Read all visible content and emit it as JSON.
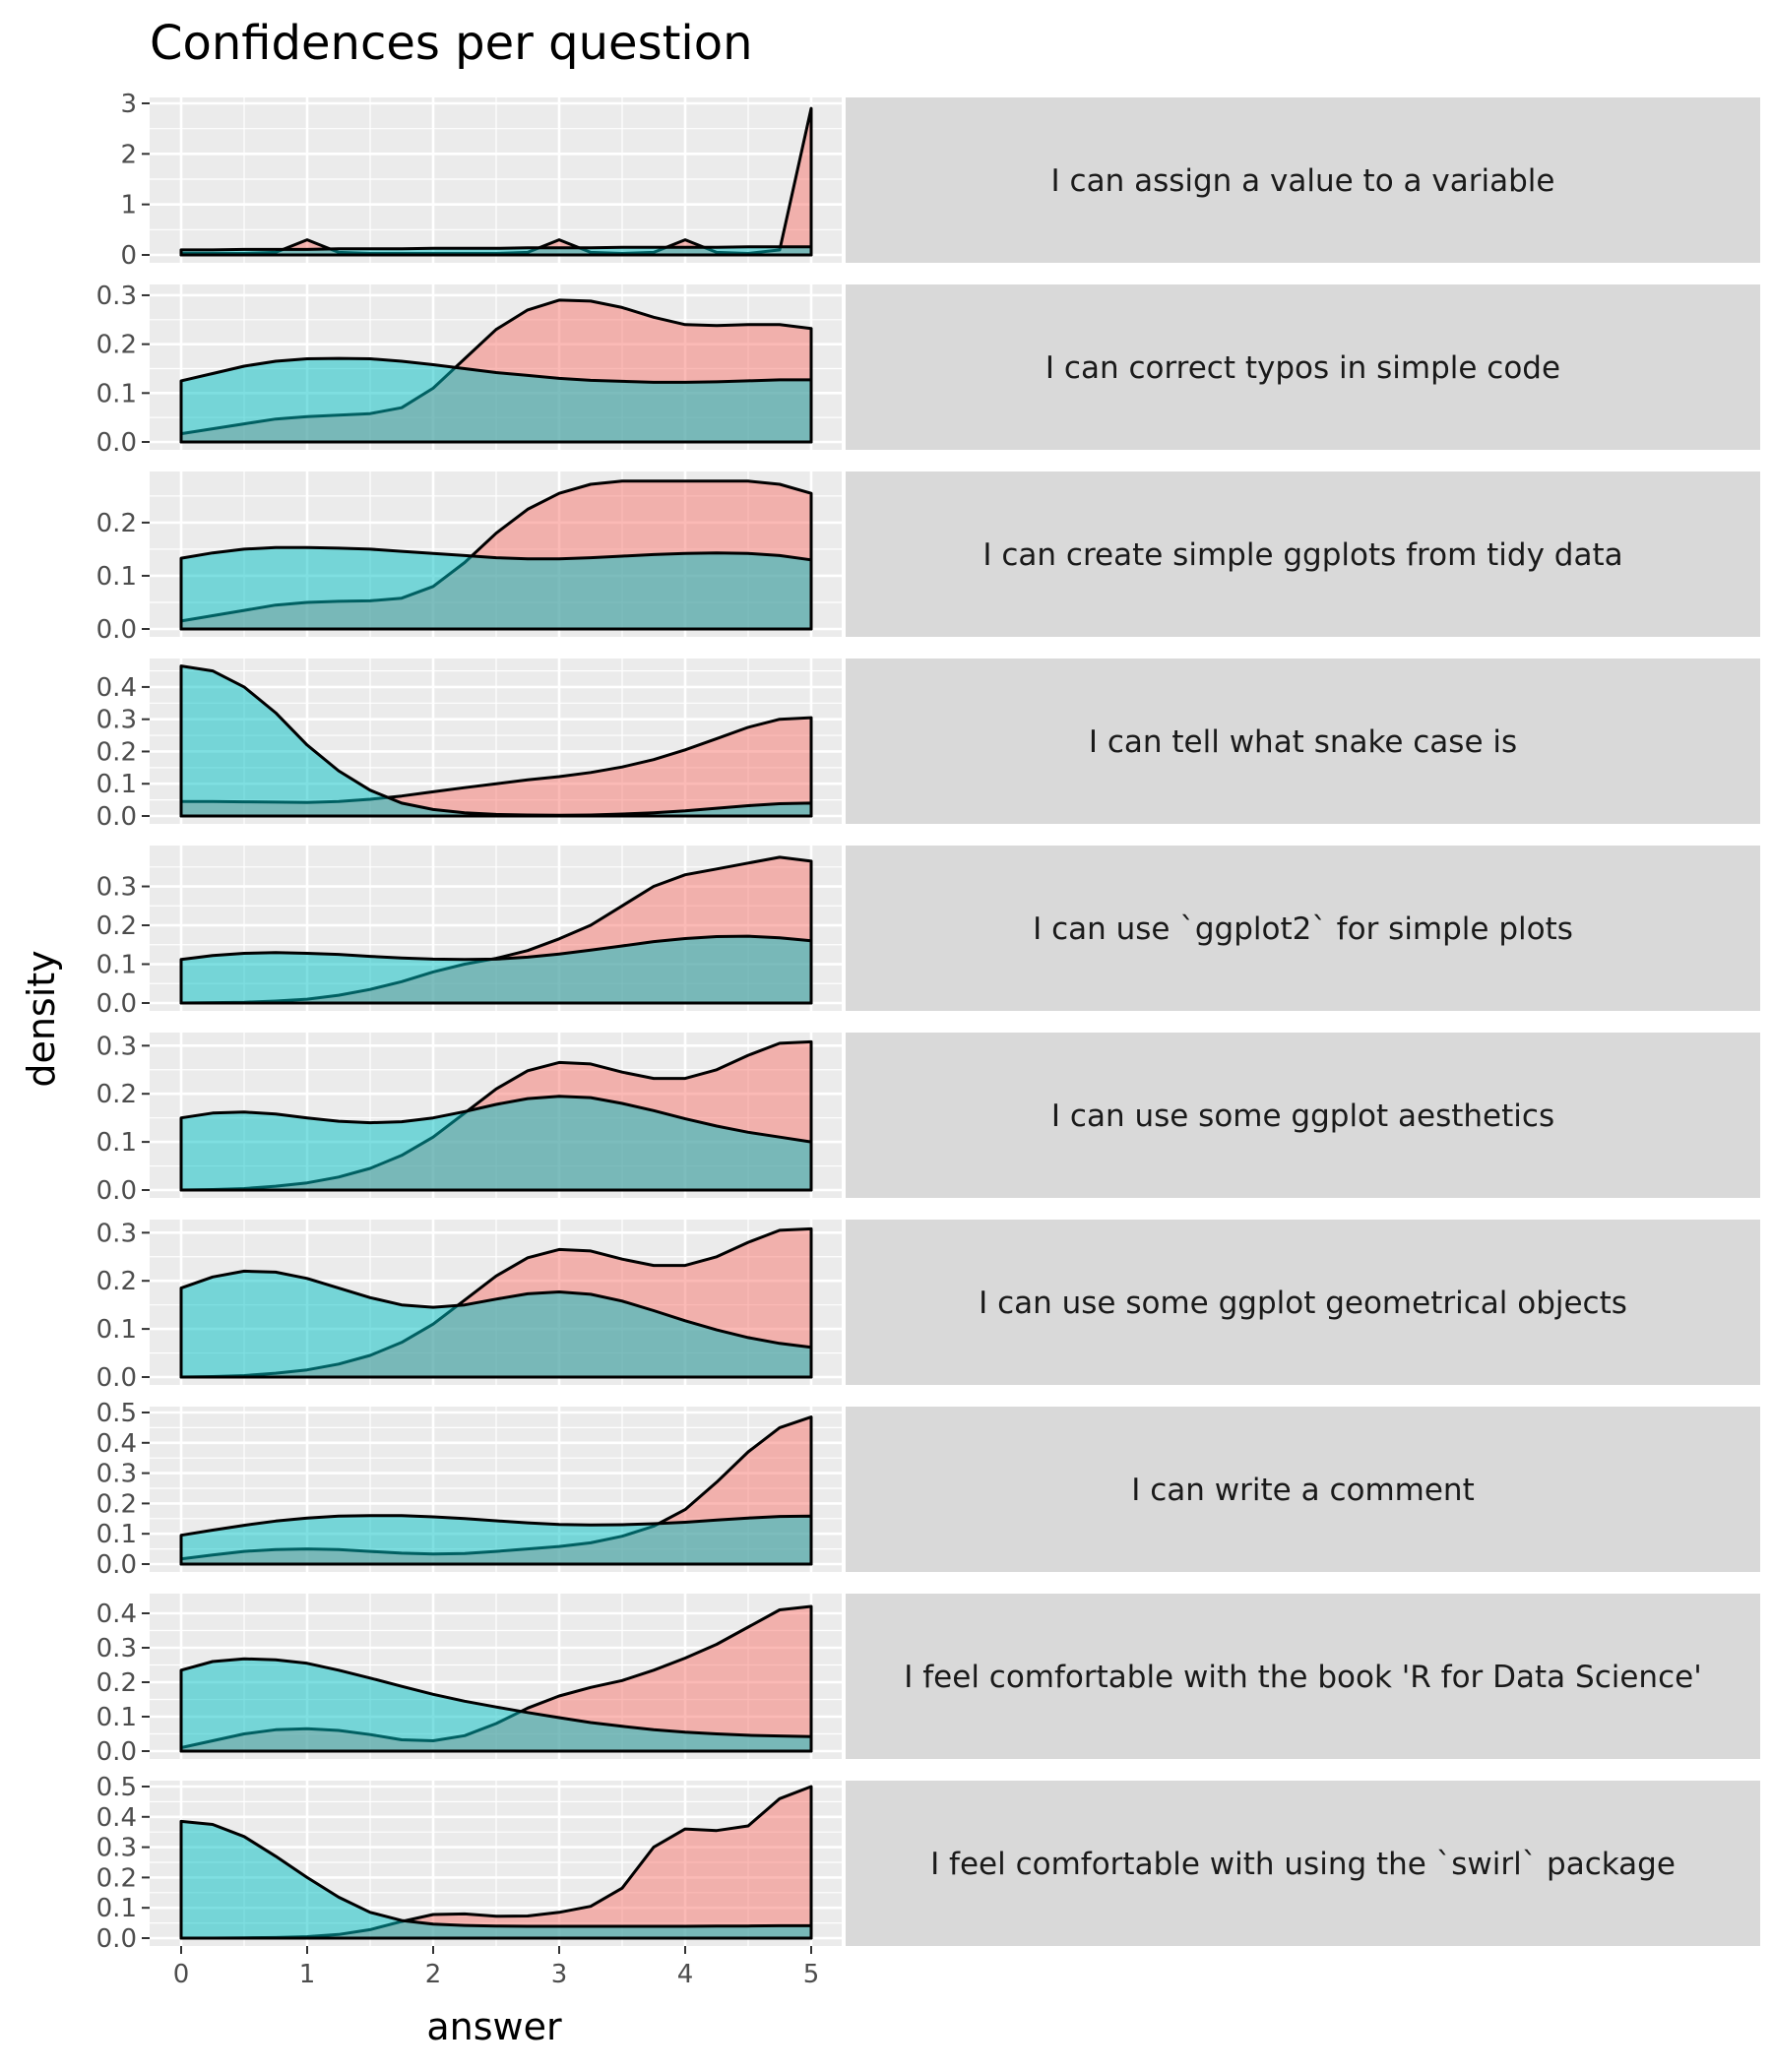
{
  "chart_data": {
    "type": "area",
    "title": "Confidences per question",
    "xlabel": "answer",
    "ylabel": "density",
    "xlim": [
      0,
      5
    ],
    "x_ticks": [
      0,
      1,
      2,
      3,
      4,
      5
    ],
    "grid": true,
    "legend": "none",
    "colors": {
      "red": "#F8766D",
      "teal": "#00BFC4"
    },
    "x": [
      0,
      0.25,
      0.5,
      0.75,
      1,
      1.25,
      1.5,
      1.75,
      2,
      2.25,
      2.5,
      2.75,
      3,
      3.25,
      3.5,
      3.75,
      4,
      4.25,
      4.5,
      4.75,
      5
    ],
    "panels": [
      {
        "label": "I can assign a value to a variable",
        "ylim": [
          0,
          3
        ],
        "y_ticks": [
          0,
          1,
          2,
          3
        ],
        "y_tick_labels": [
          "0",
          "1",
          "2",
          "3"
        ],
        "series": [
          {
            "color": "#F8766D",
            "values": [
              0.03,
              0.03,
              0.03,
              0.05,
              0.3,
              0.05,
              0.03,
              0.03,
              0.03,
              0.03,
              0.03,
              0.05,
              0.3,
              0.05,
              0.03,
              0.05,
              0.3,
              0.05,
              0.03,
              0.1,
              2.9
            ]
          },
          {
            "color": "#00BFC4",
            "values": [
              0.1,
              0.1,
              0.11,
              0.11,
              0.11,
              0.12,
              0.12,
              0.12,
              0.13,
              0.13,
              0.13,
              0.14,
              0.14,
              0.14,
              0.15,
              0.15,
              0.15,
              0.15,
              0.16,
              0.16,
              0.16
            ]
          }
        ]
      },
      {
        "label": "I can correct typos in simple code",
        "ylim": [
          0,
          0.31
        ],
        "y_ticks": [
          0,
          0.1,
          0.2,
          0.3
        ],
        "y_tick_labels": [
          "0.0",
          "0.1",
          "0.2",
          "0.3"
        ],
        "series": [
          {
            "color": "#F8766D",
            "values": [
              0.017,
              0.027,
              0.037,
              0.047,
              0.052,
              0.055,
              0.058,
              0.07,
              0.11,
              0.17,
              0.23,
              0.27,
              0.29,
              0.288,
              0.275,
              0.255,
              0.24,
              0.238,
              0.24,
              0.24,
              0.232
            ]
          },
          {
            "color": "#00BFC4",
            "values": [
              0.125,
              0.14,
              0.155,
              0.165,
              0.17,
              0.171,
              0.17,
              0.165,
              0.158,
              0.15,
              0.142,
              0.136,
              0.13,
              0.126,
              0.124,
              0.122,
              0.122,
              0.123,
              0.125,
              0.127,
              0.127
            ]
          }
        ]
      },
      {
        "label": "I can create simple ggplots from tidy data",
        "ylim": [
          0,
          0.285
        ],
        "y_ticks": [
          0,
          0.1,
          0.2
        ],
        "y_tick_labels": [
          "0.0",
          "0.1",
          "0.2"
        ],
        "series": [
          {
            "color": "#F8766D",
            "values": [
              0.015,
              0.025,
              0.035,
              0.045,
              0.05,
              0.052,
              0.053,
              0.058,
              0.08,
              0.125,
              0.18,
              0.225,
              0.255,
              0.272,
              0.278,
              0.278,
              0.278,
              0.278,
              0.278,
              0.272,
              0.255
            ]
          },
          {
            "color": "#00BFC4",
            "values": [
              0.133,
              0.143,
              0.15,
              0.153,
              0.153,
              0.152,
              0.15,
              0.146,
              0.142,
              0.138,
              0.134,
              0.132,
              0.132,
              0.134,
              0.137,
              0.14,
              0.142,
              0.143,
              0.142,
              0.138,
              0.13
            ]
          }
        ]
      },
      {
        "label": "I can tell what snake case is",
        "ylim": [
          0,
          0.47
        ],
        "y_ticks": [
          0,
          0.1,
          0.2,
          0.3,
          0.4
        ],
        "y_tick_labels": [
          "0.0",
          "0.1",
          "0.2",
          "0.3",
          "0.4"
        ],
        "series": [
          {
            "color": "#F8766D",
            "values": [
              0.045,
              0.045,
              0.044,
              0.043,
              0.042,
              0.045,
              0.052,
              0.062,
              0.075,
              0.088,
              0.1,
              0.112,
              0.122,
              0.135,
              0.152,
              0.175,
              0.205,
              0.24,
              0.275,
              0.3,
              0.305
            ]
          },
          {
            "color": "#00BFC4",
            "values": [
              0.465,
              0.45,
              0.4,
              0.32,
              0.22,
              0.14,
              0.08,
              0.04,
              0.02,
              0.01,
              0.005,
              0.003,
              0.002,
              0.003,
              0.006,
              0.01,
              0.016,
              0.024,
              0.032,
              0.038,
              0.04
            ]
          }
        ]
      },
      {
        "label": "I can use `ggplot2` for simple plots",
        "ylim": [
          0,
          0.39
        ],
        "y_ticks": [
          0,
          0.1,
          0.2,
          0.3
        ],
        "y_tick_labels": [
          "0.0",
          "0.1",
          "0.2",
          "0.3"
        ],
        "series": [
          {
            "color": "#F8766D",
            "values": [
              0.0,
              0.001,
              0.002,
              0.005,
              0.01,
              0.02,
              0.035,
              0.055,
              0.08,
              0.1,
              0.115,
              0.135,
              0.165,
              0.2,
              0.25,
              0.3,
              0.33,
              0.345,
              0.36,
              0.375,
              0.365
            ]
          },
          {
            "color": "#00BFC4",
            "values": [
              0.112,
              0.122,
              0.128,
              0.13,
              0.128,
              0.125,
              0.12,
              0.116,
              0.113,
              0.112,
              0.113,
              0.118,
              0.126,
              0.136,
              0.147,
              0.158,
              0.166,
              0.171,
              0.172,
              0.168,
              0.16
            ]
          }
        ]
      },
      {
        "label": "I can use some ggplot aesthetics",
        "ylim": [
          0,
          0.315
        ],
        "y_ticks": [
          0,
          0.1,
          0.2,
          0.3
        ],
        "y_tick_labels": [
          "0.0",
          "0.1",
          "0.2",
          "0.3"
        ],
        "series": [
          {
            "color": "#F8766D",
            "values": [
              0.0,
              0.001,
              0.003,
              0.008,
              0.015,
              0.027,
              0.045,
              0.072,
              0.11,
              0.16,
              0.21,
              0.248,
              0.265,
              0.262,
              0.245,
              0.232,
              0.232,
              0.25,
              0.28,
              0.305,
              0.308
            ]
          },
          {
            "color": "#00BFC4",
            "values": [
              0.15,
              0.16,
              0.162,
              0.158,
              0.15,
              0.143,
              0.14,
              0.142,
              0.15,
              0.163,
              0.178,
              0.19,
              0.195,
              0.192,
              0.18,
              0.165,
              0.148,
              0.133,
              0.12,
              0.11,
              0.1
            ]
          }
        ]
      },
      {
        "label": "I can use some ggplot geometrical objects",
        "ylim": [
          0,
          0.315
        ],
        "y_ticks": [
          0,
          0.1,
          0.2,
          0.3
        ],
        "y_tick_labels": [
          "0.0",
          "0.1",
          "0.2",
          "0.3"
        ],
        "series": [
          {
            "color": "#F8766D",
            "values": [
              0.0,
              0.001,
              0.003,
              0.008,
              0.015,
              0.027,
              0.045,
              0.072,
              0.11,
              0.16,
              0.21,
              0.248,
              0.265,
              0.262,
              0.245,
              0.232,
              0.232,
              0.25,
              0.28,
              0.305,
              0.308
            ]
          },
          {
            "color": "#00BFC4",
            "values": [
              0.185,
              0.208,
              0.22,
              0.218,
              0.205,
              0.185,
              0.165,
              0.15,
              0.145,
              0.15,
              0.162,
              0.173,
              0.177,
              0.172,
              0.158,
              0.138,
              0.117,
              0.098,
              0.082,
              0.07,
              0.062
            ]
          }
        ]
      },
      {
        "label": "I can write a comment",
        "ylim": [
          0,
          0.5
        ],
        "y_ticks": [
          0,
          0.1,
          0.2,
          0.3,
          0.4,
          0.5
        ],
        "y_tick_labels": [
          "0.0",
          "0.1",
          "0.2",
          "0.3",
          "0.4",
          "0.5"
        ],
        "series": [
          {
            "color": "#F8766D",
            "values": [
              0.017,
              0.03,
              0.042,
              0.048,
              0.05,
              0.048,
              0.042,
              0.036,
              0.033,
              0.035,
              0.042,
              0.05,
              0.058,
              0.07,
              0.092,
              0.125,
              0.18,
              0.27,
              0.37,
              0.45,
              0.485
            ]
          },
          {
            "color": "#00BFC4",
            "values": [
              0.095,
              0.112,
              0.128,
              0.142,
              0.152,
              0.158,
              0.16,
              0.16,
              0.156,
              0.15,
              0.143,
              0.136,
              0.131,
              0.129,
              0.13,
              0.133,
              0.138,
              0.145,
              0.152,
              0.157,
              0.158
            ]
          }
        ]
      },
      {
        "label": "I feel comfortable with the book 'R for Data Science'",
        "ylim": [
          0,
          0.44
        ],
        "y_ticks": [
          0,
          0.1,
          0.2,
          0.3,
          0.4
        ],
        "y_tick_labels": [
          "0.0",
          "0.1",
          "0.2",
          "0.3",
          "0.4"
        ],
        "series": [
          {
            "color": "#F8766D",
            "values": [
              0.01,
              0.03,
              0.05,
              0.062,
              0.065,
              0.06,
              0.048,
              0.033,
              0.03,
              0.045,
              0.08,
              0.125,
              0.16,
              0.185,
              0.205,
              0.235,
              0.27,
              0.31,
              0.36,
              0.41,
              0.42
            ]
          },
          {
            "color": "#00BFC4",
            "values": [
              0.235,
              0.26,
              0.268,
              0.265,
              0.255,
              0.235,
              0.212,
              0.188,
              0.165,
              0.145,
              0.128,
              0.112,
              0.097,
              0.083,
              0.072,
              0.062,
              0.055,
              0.05,
              0.046,
              0.044,
              0.042
            ]
          }
        ]
      },
      {
        "label": "I feel comfortable with using the `swirl` package",
        "ylim": [
          0,
          0.5
        ],
        "y_ticks": [
          0,
          0.1,
          0.2,
          0.3,
          0.4,
          0.5
        ],
        "y_tick_labels": [
          "0.0",
          "0.1",
          "0.2",
          "0.3",
          "0.4",
          "0.5"
        ],
        "series": [
          {
            "color": "#F8766D",
            "values": [
              0.0,
              0.0,
              0.001,
              0.002,
              0.005,
              0.012,
              0.028,
              0.055,
              0.078,
              0.08,
              0.072,
              0.073,
              0.085,
              0.105,
              0.165,
              0.3,
              0.36,
              0.355,
              0.37,
              0.46,
              0.5
            ]
          },
          {
            "color": "#00BFC4",
            "values": [
              0.385,
              0.375,
              0.335,
              0.27,
              0.2,
              0.135,
              0.085,
              0.058,
              0.046,
              0.042,
              0.04,
              0.039,
              0.039,
              0.039,
              0.039,
              0.039,
              0.039,
              0.04,
              0.04,
              0.041,
              0.041
            ]
          }
        ]
      }
    ]
  }
}
